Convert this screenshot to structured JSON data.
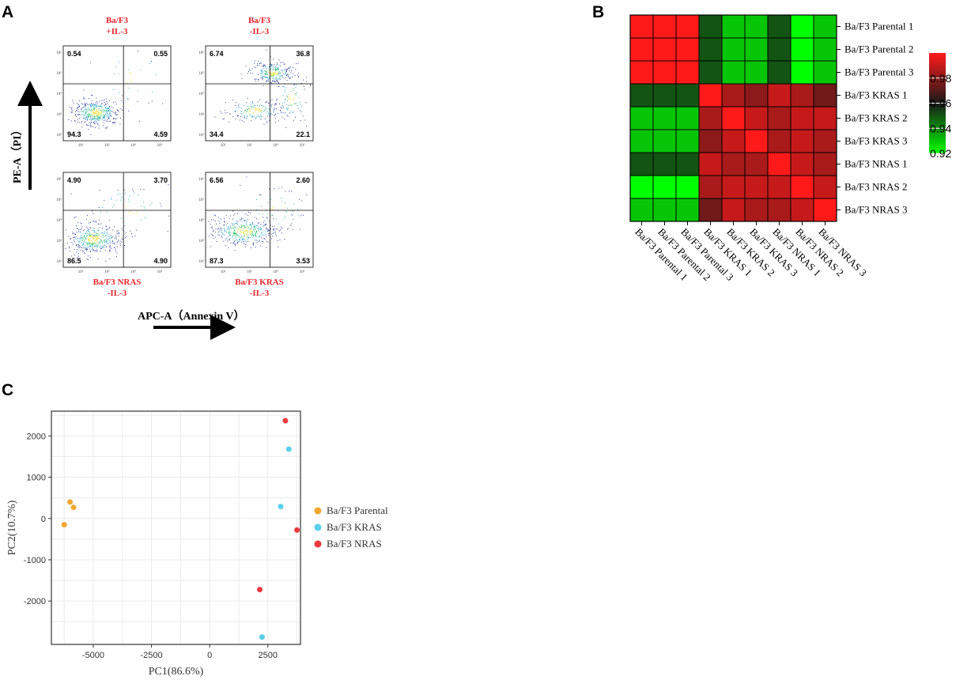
{
  "panels": {
    "a": "A",
    "b": "B",
    "c": "C"
  },
  "flow": {
    "plots": [
      {
        "title1": "Ba/F3",
        "title2": "+IL-3",
        "title_pos": "top",
        "ul": "0.54",
        "ur": "0.55",
        "ll": "94.3",
        "lr": "4.59"
      },
      {
        "title1": "Ba/F3",
        "title2": "-IL-3",
        "title_pos": "top",
        "ul": "6.74",
        "ur": "36.8",
        "ll": "34.4",
        "lr": "22.1"
      },
      {
        "title1": "Ba/F3 NRAS",
        "title2": "-IL-3",
        "title_pos": "bottom",
        "ul": "4.90",
        "ur": "3.70",
        "ll": "86.5",
        "lr": "4.90"
      },
      {
        "title1": "Ba/F3 KRAS",
        "title2": "-IL-3",
        "title_pos": "bottom",
        "ul": "6.56",
        "ur": "2.60",
        "ll": "87.3",
        "lr": "3.53"
      }
    ],
    "y_ticks": [
      "10⁶",
      "10⁵",
      "10⁴",
      "10³",
      "10²"
    ],
    "x_ticks": [
      "10²",
      "10³",
      "10⁴",
      "10⁵"
    ],
    "y_axis_label": "PE-A（PI）",
    "x_axis_label": "APC-A（Annexin V）"
  },
  "heatmap": {
    "labels": [
      "Ba/F3 Parental 1",
      "Ba/F3 Parental 2",
      "Ba/F3 Parental 3",
      "Ba/F3 KRAS 1",
      "Ba/F3 KRAS 2",
      "Ba/F3 KRAS 3",
      "Ba/F3 NRAS 1",
      "Ba/F3 NRAS 2",
      "Ba/F3 NRAS 3"
    ],
    "colorbar": {
      "ticks": [
        "0.98",
        "0.96",
        "0.94",
        "0.92"
      ],
      "min": 0.92,
      "max": 1.0
    }
  },
  "chart_data": [
    {
      "type": "heatmap",
      "title": "",
      "categories": [
        "Ba/F3 Parental 1",
        "Ba/F3 Parental 2",
        "Ba/F3 Parental 3",
        "Ba/F3 KRAS 1",
        "Ba/F3 KRAS 2",
        "Ba/F3 KRAS 3",
        "Ba/F3 NRAS 1",
        "Ba/F3 NRAS 2",
        "Ba/F3 NRAS 3"
      ],
      "values": [
        [
          1.0,
          1.0,
          1.0,
          0.95,
          0.93,
          0.93,
          0.95,
          0.92,
          0.93
        ],
        [
          1.0,
          1.0,
          1.0,
          0.95,
          0.93,
          0.93,
          0.95,
          0.92,
          0.93
        ],
        [
          1.0,
          1.0,
          1.0,
          0.95,
          0.93,
          0.93,
          0.95,
          0.92,
          0.93
        ],
        [
          0.95,
          0.95,
          0.95,
          1.0,
          0.985,
          0.98,
          0.99,
          0.985,
          0.975
        ],
        [
          0.93,
          0.93,
          0.93,
          0.985,
          1.0,
          0.99,
          0.985,
          0.99,
          0.99
        ],
        [
          0.93,
          0.93,
          0.93,
          0.98,
          0.99,
          1.0,
          0.985,
          0.99,
          0.985
        ],
        [
          0.95,
          0.95,
          0.95,
          0.99,
          0.985,
          0.985,
          1.0,
          0.99,
          0.985
        ],
        [
          0.92,
          0.92,
          0.92,
          0.985,
          0.99,
          0.99,
          0.99,
          1.0,
          0.99
        ],
        [
          0.93,
          0.93,
          0.93,
          0.975,
          0.99,
          0.985,
          0.985,
          0.99,
          1.0
        ]
      ],
      "colorscale": [
        "#00ff00",
        "#1a1a1a",
        "#ff1a1a"
      ],
      "zlim": [
        0.92,
        1.0
      ]
    },
    {
      "type": "scatter",
      "title": "",
      "xlabel": "PC1(86.6%)",
      "ylabel": "PC2(10.7%)",
      "xlim": [
        -6800,
        3900
      ],
      "ylim": [
        -3050,
        2600
      ],
      "xticks": [
        -5000,
        -2500,
        0,
        2500
      ],
      "yticks": [
        2000,
        1000,
        0,
        -1000,
        -2000
      ],
      "xgrid": [
        -6250,
        -5000,
        -3750,
        -2500,
        -1250,
        0,
        1250,
        2500,
        3750
      ],
      "ygrid": [
        2500,
        2000,
        1500,
        1000,
        500,
        0,
        -500,
        -1000,
        -1500,
        -2000,
        -2500
      ],
      "series": [
        {
          "name": "Ba/F3 Parental",
          "color": "#f0a830",
          "points": [
            [
              -6000,
              400
            ],
            [
              -5850,
              270
            ],
            [
              -6250,
              -150
            ]
          ]
        },
        {
          "name": "Ba/F3 KRAS",
          "color": "#5bd0ea",
          "points": [
            [
              3400,
              1680
            ],
            [
              3050,
              290
            ],
            [
              2250,
              -2870
            ]
          ]
        },
        {
          "name": "Ba/F3 NRAS",
          "color": "#ea3a40",
          "points": [
            [
              3250,
              2370
            ],
            [
              3750,
              -280
            ],
            [
              2150,
              -1720
            ]
          ]
        }
      ]
    }
  ]
}
